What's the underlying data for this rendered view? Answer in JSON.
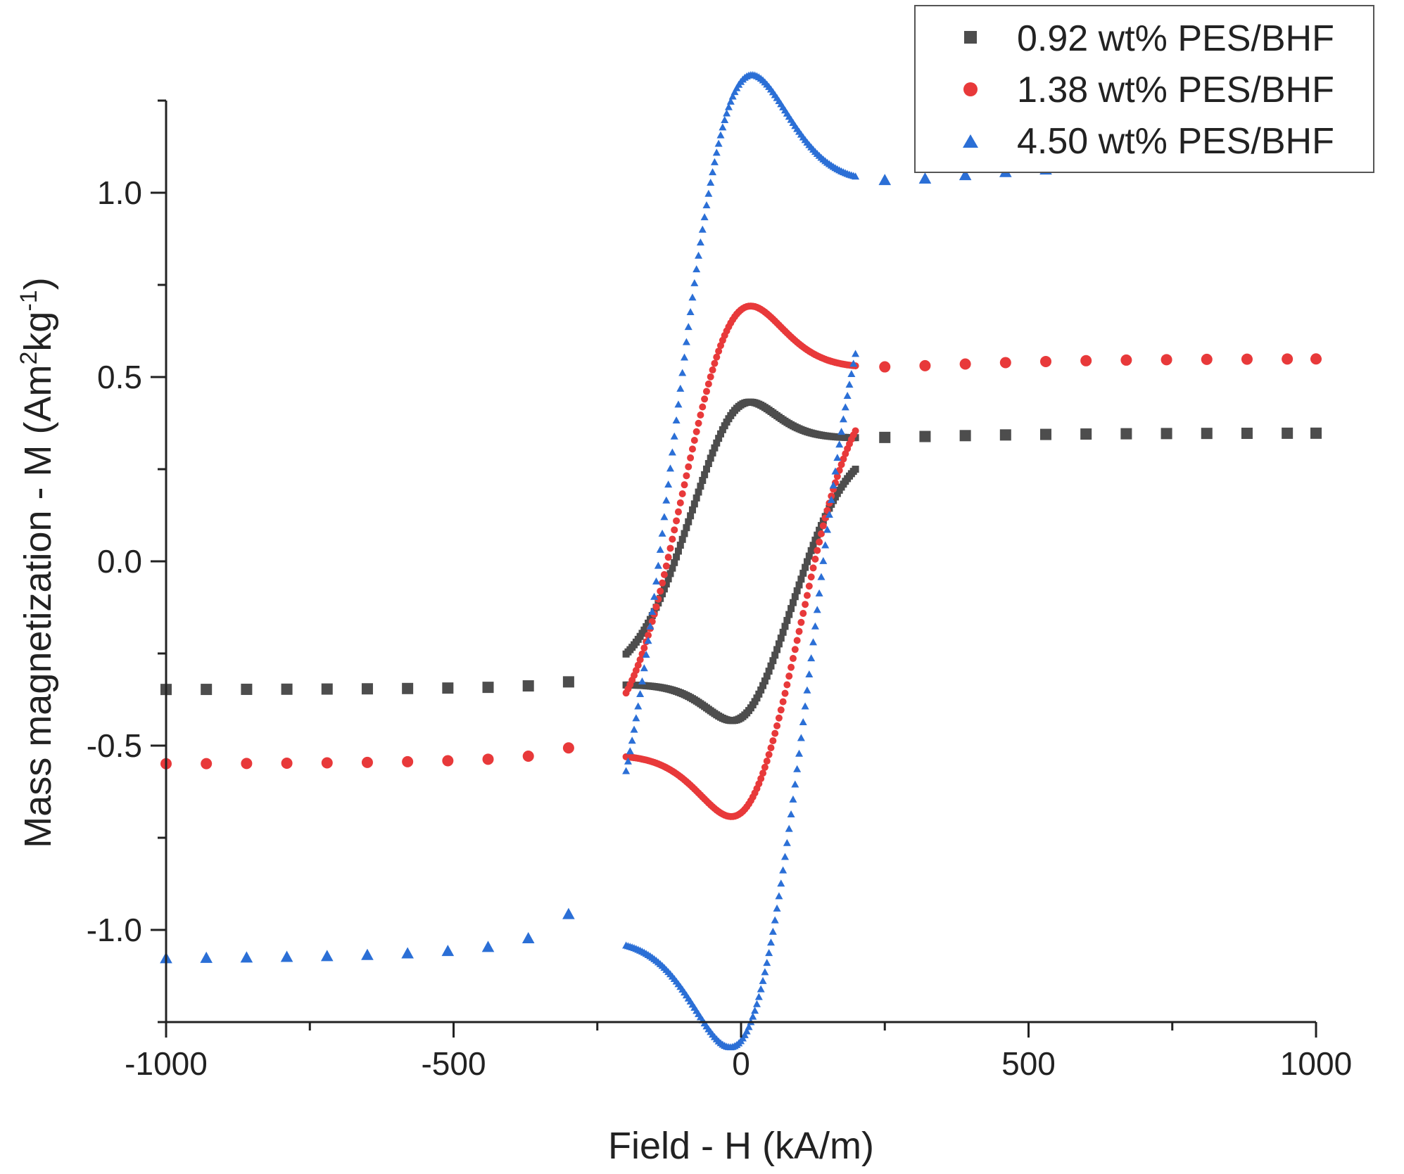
{
  "chart_data": {
    "type": "scatter",
    "xlabel": "Field - H (kA/m)",
    "ylabel": {
      "base": "Mass magnetization - M (Am",
      "sup1": "2",
      "mid": "kg",
      "sup2": "-1",
      "end": ")"
    },
    "xlim": [
      -1000,
      1000
    ],
    "ylim": [
      -1.25,
      1.25
    ],
    "x_ticks": [
      -1000,
      -500,
      0,
      500,
      1000
    ],
    "x_tick_labels": [
      "-1000",
      "-500",
      "0",
      "500",
      "1000"
    ],
    "y_ticks": [
      -1.0,
      -0.5,
      0.0,
      0.5,
      1.0
    ],
    "y_tick_labels": [
      "-1.0",
      "-0.5",
      "0.0",
      "0.5",
      "1.0"
    ],
    "grid": false,
    "legend_position": "top-right",
    "series": [
      {
        "name": "0.92 wt% PES/BHF",
        "color": "#4d4d4d",
        "marker": "square",
        "ms": 0.32,
        "hc": 105,
        "k": 95,
        "ma": 0.2,
        "ba": 82,
        "s": 0.028
      },
      {
        "name": "1.38 wt% PES/BHF",
        "color": "#e8393a",
        "marker": "circle",
        "ms": 0.49,
        "hc": 115,
        "k": 95,
        "ma": 0.33,
        "ba": 100,
        "s": 0.06
      },
      {
        "name": "4.50 wt% PES/BHF",
        "color": "#2b6fd6",
        "marker": "triangle",
        "ms": 0.94,
        "hc": 130,
        "k": 100,
        "ma": 0.61,
        "ba": 115,
        "s": 0.14
      }
    ]
  }
}
